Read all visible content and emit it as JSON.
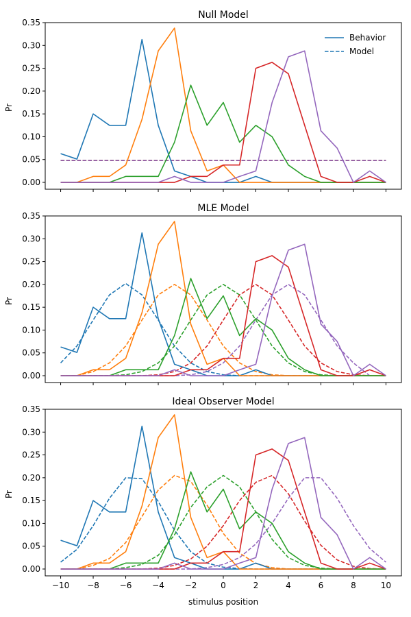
{
  "figure": {
    "xlabel": "stimulus position",
    "legend": {
      "placement": "top-right of first panel",
      "entries": [
        {
          "label": "Behavior",
          "style": "solid"
        },
        {
          "label": "Model",
          "style": "dashed"
        }
      ]
    },
    "colors": [
      "#1f77b4",
      "#ff7f0e",
      "#2ca02c",
      "#d62728",
      "#9467bd"
    ]
  },
  "chart_data": [
    {
      "type": "line",
      "title": "Null Model",
      "ylabel": "Pr",
      "xlabel": "",
      "xlim": [
        -10,
        10
      ],
      "ylim": [
        -0.015,
        0.35
      ],
      "xticks": [
        -10,
        -8,
        -6,
        -4,
        -2,
        0,
        2,
        4,
        6,
        8,
        10
      ],
      "yticks": [
        "0.00",
        "0.05",
        "0.10",
        "0.15",
        "0.20",
        "0.25",
        "0.30",
        "0.35"
      ],
      "show_xtick_labels": false,
      "x": [
        -10,
        -9,
        -8,
        -7,
        -6,
        -5,
        -4,
        -3,
        -2,
        -1,
        0,
        1,
        2,
        3,
        4,
        5,
        6,
        7,
        8,
        9,
        10
      ],
      "behavior": [
        [
          0.063,
          0.051,
          0.15,
          0.125,
          0.125,
          0.313,
          0.125,
          0.025,
          0.013,
          0.0,
          0.0,
          0.0,
          0.013,
          0.0,
          0.0,
          0.0,
          0.0,
          0.0,
          0.0,
          0.0,
          0.0
        ],
        [
          0.0,
          0.0,
          0.013,
          0.013,
          0.038,
          0.138,
          0.288,
          0.338,
          0.113,
          0.025,
          0.038,
          0.0,
          0.0,
          0.0,
          0.0,
          0.0,
          0.0,
          0.0,
          0.0,
          0.0,
          0.0
        ],
        [
          0.0,
          0.0,
          0.0,
          0.0,
          0.013,
          0.013,
          0.013,
          0.088,
          0.213,
          0.125,
          0.175,
          0.088,
          0.125,
          0.1,
          0.038,
          0.013,
          0.0,
          0.0,
          0.0,
          0.0,
          0.0
        ],
        [
          0.0,
          0.0,
          0.0,
          0.0,
          0.0,
          0.0,
          0.0,
          0.0,
          0.013,
          0.013,
          0.038,
          0.038,
          0.25,
          0.263,
          0.238,
          0.125,
          0.013,
          0.0,
          0.0,
          0.013,
          0.0
        ],
        [
          0.0,
          0.0,
          0.0,
          0.0,
          0.0,
          0.0,
          0.0,
          0.013,
          0.0,
          0.0,
          0.0,
          0.013,
          0.025,
          0.175,
          0.275,
          0.288,
          0.113,
          0.075,
          0.0,
          0.025,
          0.0
        ]
      ],
      "model": [
        [
          0.048,
          0.048,
          0.048,
          0.048,
          0.048,
          0.048,
          0.048,
          0.048,
          0.048,
          0.048,
          0.048,
          0.048,
          0.048,
          0.048,
          0.048,
          0.048,
          0.048,
          0.048,
          0.048,
          0.048,
          0.048
        ],
        [
          0.048,
          0.048,
          0.048,
          0.048,
          0.048,
          0.048,
          0.048,
          0.048,
          0.048,
          0.048,
          0.048,
          0.048,
          0.048,
          0.048,
          0.048,
          0.048,
          0.048,
          0.048,
          0.048,
          0.048,
          0.048
        ],
        [
          0.048,
          0.048,
          0.048,
          0.048,
          0.048,
          0.048,
          0.048,
          0.048,
          0.048,
          0.048,
          0.048,
          0.048,
          0.048,
          0.048,
          0.048,
          0.048,
          0.048,
          0.048,
          0.048,
          0.048,
          0.048
        ],
        [
          0.048,
          0.048,
          0.048,
          0.048,
          0.048,
          0.048,
          0.048,
          0.048,
          0.048,
          0.048,
          0.048,
          0.048,
          0.048,
          0.048,
          0.048,
          0.048,
          0.048,
          0.048,
          0.048,
          0.048,
          0.048
        ],
        [
          0.048,
          0.048,
          0.048,
          0.048,
          0.048,
          0.048,
          0.048,
          0.048,
          0.048,
          0.048,
          0.048,
          0.048,
          0.048,
          0.048,
          0.048,
          0.048,
          0.048,
          0.048,
          0.048,
          0.048,
          0.048
        ]
      ]
    },
    {
      "type": "line",
      "title": "MLE Model",
      "ylabel": "Pr",
      "xlabel": "",
      "xlim": [
        -10,
        10
      ],
      "ylim": [
        -0.015,
        0.35
      ],
      "xticks": [
        -10,
        -8,
        -6,
        -4,
        -2,
        0,
        2,
        4,
        6,
        8,
        10
      ],
      "yticks": [
        "0.00",
        "0.05",
        "0.10",
        "0.15",
        "0.20",
        "0.25",
        "0.30",
        "0.35"
      ],
      "show_xtick_labels": false,
      "x": [
        -10,
        -9,
        -8,
        -7,
        -6,
        -5,
        -4,
        -3,
        -2,
        -1,
        0,
        1,
        2,
        3,
        4,
        5,
        6,
        7,
        8,
        9,
        10
      ],
      "behavior": [
        [
          0.063,
          0.051,
          0.15,
          0.125,
          0.125,
          0.313,
          0.125,
          0.025,
          0.013,
          0.0,
          0.0,
          0.0,
          0.013,
          0.0,
          0.0,
          0.0,
          0.0,
          0.0,
          0.0,
          0.0,
          0.0
        ],
        [
          0.0,
          0.0,
          0.013,
          0.013,
          0.038,
          0.138,
          0.288,
          0.338,
          0.113,
          0.025,
          0.038,
          0.0,
          0.0,
          0.0,
          0.0,
          0.0,
          0.0,
          0.0,
          0.0,
          0.0,
          0.0
        ],
        [
          0.0,
          0.0,
          0.0,
          0.0,
          0.013,
          0.013,
          0.013,
          0.088,
          0.213,
          0.125,
          0.175,
          0.088,
          0.125,
          0.1,
          0.038,
          0.013,
          0.0,
          0.0,
          0.0,
          0.0,
          0.0
        ],
        [
          0.0,
          0.0,
          0.0,
          0.0,
          0.0,
          0.0,
          0.0,
          0.0,
          0.013,
          0.013,
          0.038,
          0.038,
          0.25,
          0.263,
          0.238,
          0.125,
          0.013,
          0.0,
          0.0,
          0.013,
          0.0
        ],
        [
          0.0,
          0.0,
          0.0,
          0.0,
          0.0,
          0.0,
          0.0,
          0.013,
          0.0,
          0.0,
          0.0,
          0.013,
          0.025,
          0.175,
          0.275,
          0.288,
          0.113,
          0.075,
          0.0,
          0.025,
          0.0
        ]
      ],
      "model": [
        [
          0.028,
          0.065,
          0.122,
          0.177,
          0.202,
          0.177,
          0.122,
          0.065,
          0.028,
          0.009,
          0.002,
          0.0,
          0.0,
          0.0,
          0.0,
          0.0,
          0.0,
          0.0,
          0.0,
          0.0,
          0.0
        ],
        [
          0.0,
          0.0,
          0.009,
          0.028,
          0.065,
          0.122,
          0.177,
          0.2,
          0.177,
          0.122,
          0.065,
          0.028,
          0.009,
          0.002,
          0.0,
          0.0,
          0.0,
          0.0,
          0.0,
          0.0,
          0.0
        ],
        [
          0.0,
          0.0,
          0.0,
          0.0,
          0.002,
          0.009,
          0.028,
          0.065,
          0.122,
          0.177,
          0.2,
          0.177,
          0.122,
          0.065,
          0.028,
          0.009,
          0.002,
          0.0,
          0.0,
          0.0,
          0.0
        ],
        [
          0.0,
          0.0,
          0.0,
          0.0,
          0.0,
          0.0,
          0.002,
          0.009,
          0.028,
          0.065,
          0.122,
          0.177,
          0.2,
          0.177,
          0.122,
          0.065,
          0.028,
          0.009,
          0.002,
          0.0,
          0.0
        ],
        [
          0.0,
          0.0,
          0.0,
          0.0,
          0.0,
          0.0,
          0.0,
          0.0,
          0.002,
          0.009,
          0.028,
          0.065,
          0.122,
          0.177,
          0.2,
          0.177,
          0.122,
          0.065,
          0.028,
          0.0,
          0.0
        ]
      ]
    },
    {
      "type": "line",
      "title": "Ideal Observer Model",
      "ylabel": "Pr",
      "xlabel": "stimulus position",
      "xlim": [
        -10,
        10
      ],
      "ylim": [
        -0.015,
        0.35
      ],
      "xticks": [
        -10,
        -8,
        -6,
        -4,
        -2,
        0,
        2,
        4,
        6,
        8,
        10
      ],
      "yticks": [
        "0.00",
        "0.05",
        "0.10",
        "0.15",
        "0.20",
        "0.25",
        "0.30",
        "0.35"
      ],
      "show_xtick_labels": true,
      "x": [
        -10,
        -9,
        -8,
        -7,
        -6,
        -5,
        -4,
        -3,
        -2,
        -1,
        0,
        1,
        2,
        3,
        4,
        5,
        6,
        7,
        8,
        9,
        10
      ],
      "behavior": [
        [
          0.063,
          0.051,
          0.15,
          0.125,
          0.125,
          0.313,
          0.125,
          0.025,
          0.013,
          0.0,
          0.0,
          0.0,
          0.013,
          0.0,
          0.0,
          0.0,
          0.0,
          0.0,
          0.0,
          0.0,
          0.0
        ],
        [
          0.0,
          0.0,
          0.013,
          0.013,
          0.038,
          0.138,
          0.288,
          0.338,
          0.113,
          0.025,
          0.038,
          0.0,
          0.0,
          0.0,
          0.0,
          0.0,
          0.0,
          0.0,
          0.0,
          0.0,
          0.0
        ],
        [
          0.0,
          0.0,
          0.0,
          0.0,
          0.013,
          0.013,
          0.013,
          0.088,
          0.213,
          0.125,
          0.175,
          0.088,
          0.125,
          0.1,
          0.038,
          0.013,
          0.0,
          0.0,
          0.0,
          0.0,
          0.0
        ],
        [
          0.0,
          0.0,
          0.0,
          0.0,
          0.0,
          0.0,
          0.0,
          0.0,
          0.013,
          0.013,
          0.038,
          0.038,
          0.25,
          0.263,
          0.238,
          0.125,
          0.013,
          0.0,
          0.0,
          0.013,
          0.0
        ],
        [
          0.0,
          0.0,
          0.0,
          0.0,
          0.0,
          0.0,
          0.0,
          0.013,
          0.0,
          0.0,
          0.0,
          0.013,
          0.025,
          0.175,
          0.275,
          0.288,
          0.113,
          0.075,
          0.0,
          0.025,
          0.0
        ]
      ],
      "model": [
        [
          0.015,
          0.043,
          0.095,
          0.155,
          0.2,
          0.198,
          0.148,
          0.085,
          0.038,
          0.013,
          0.004,
          0.001,
          0.0,
          0.0,
          0.0,
          0.0,
          0.0,
          0.0,
          0.0,
          0.0,
          0.0
        ],
        [
          0.0,
          0.0,
          0.008,
          0.023,
          0.058,
          0.115,
          0.173,
          0.205,
          0.192,
          0.14,
          0.078,
          0.035,
          0.012,
          0.003,
          0.0,
          0.0,
          0.0,
          0.0,
          0.0,
          0.0,
          0.0
        ],
        [
          0.0,
          0.0,
          0.0,
          0.0,
          0.003,
          0.01,
          0.03,
          0.075,
          0.135,
          0.18,
          0.205,
          0.18,
          0.125,
          0.065,
          0.025,
          0.008,
          0.002,
          0.0,
          0.0,
          0.0,
          0.0
        ],
        [
          0.0,
          0.0,
          0.0,
          0.0,
          0.0,
          0.0,
          0.002,
          0.008,
          0.022,
          0.05,
          0.095,
          0.15,
          0.19,
          0.205,
          0.165,
          0.105,
          0.052,
          0.02,
          0.006,
          0.001,
          0.0
        ],
        [
          0.0,
          0.0,
          0.0,
          0.0,
          0.0,
          0.0,
          0.0,
          0.0,
          0.0,
          0.003,
          0.01,
          0.025,
          0.055,
          0.1,
          0.155,
          0.2,
          0.2,
          0.155,
          0.095,
          0.045,
          0.015
        ]
      ]
    }
  ]
}
